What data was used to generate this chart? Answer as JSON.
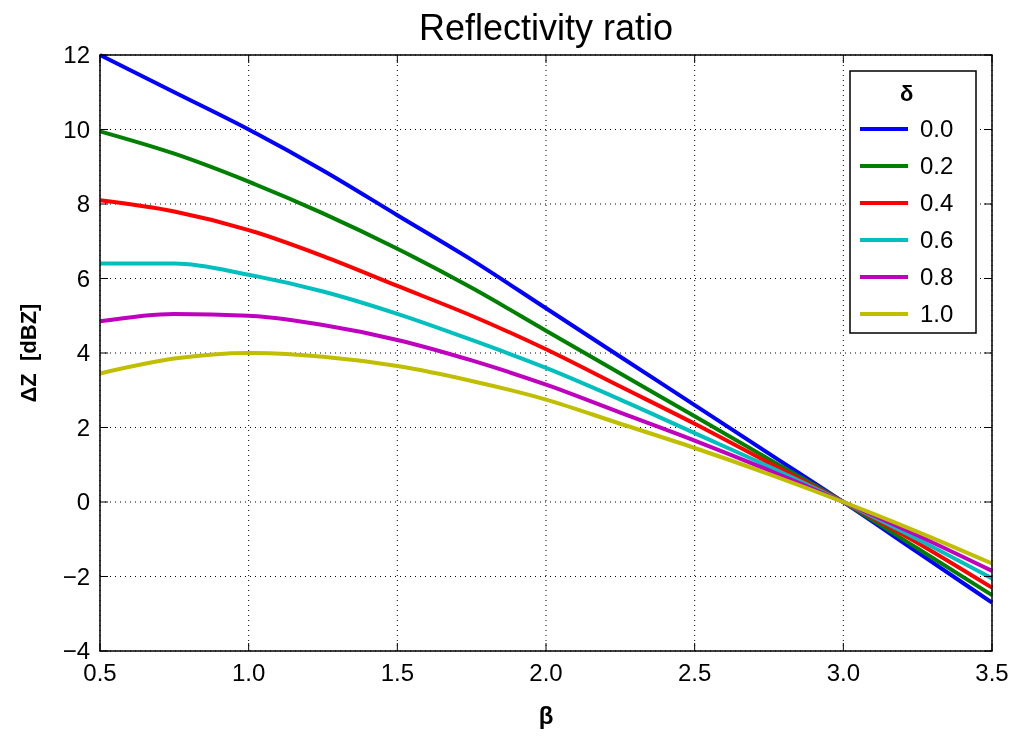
{
  "chart_data": {
    "type": "line",
    "title": "Reflectivity ratio",
    "xlabel": "β",
    "ylabel": "ΔZ  [dBZ]",
    "legend_title": "δ",
    "x": [
      0.5,
      0.75,
      1.0,
      1.25,
      1.5,
      1.75,
      2.0,
      2.25,
      2.5,
      2.75,
      3.0,
      3.25,
      3.5
    ],
    "series": [
      {
        "name": "0.0",
        "color": "#0000ff",
        "values": [
          12,
          11.0,
          10,
          8.9,
          7.7,
          6.5,
          5.2,
          3.9,
          2.6,
          1.3,
          0,
          -1.35,
          -2.7
        ]
      },
      {
        "name": "0.2",
        "color": "#008000",
        "values": [
          9.95,
          9.35,
          8.6,
          7.75,
          6.8,
          5.75,
          4.6,
          3.45,
          2.3,
          1.15,
          0,
          -1.25,
          -2.5
        ]
      },
      {
        "name": "0.4",
        "color": "#ff0000",
        "values": [
          8.1,
          7.8,
          7.3,
          6.6,
          5.8,
          5.0,
          4.1,
          3.1,
          2.1,
          1.05,
          0,
          -1.1,
          -2.3
        ]
      },
      {
        "name": "0.6",
        "color": "#00bfbf",
        "values": [
          6.4,
          6.4,
          6.1,
          5.65,
          5.05,
          4.35,
          3.6,
          2.75,
          1.85,
          0.95,
          0,
          -1.0,
          -2.05
        ]
      },
      {
        "name": "0.8",
        "color": "#bf00bf",
        "values": [
          4.85,
          5.05,
          5.0,
          4.75,
          4.35,
          3.8,
          3.15,
          2.4,
          1.65,
          0.85,
          0,
          -0.9,
          -1.85
        ]
      },
      {
        "name": "1.0",
        "color": "#bfbf00",
        "values": [
          3.45,
          3.85,
          4.0,
          3.9,
          3.65,
          3.25,
          2.75,
          2.1,
          1.45,
          0.75,
          0,
          -0.8,
          -1.65
        ]
      }
    ],
    "xlim": [
      0.5,
      3.5
    ],
    "xticks": [
      0.5,
      {
        "value": 1,
        "label": "1.0"
      },
      1.5,
      {
        "value": 2,
        "label": "2.0"
      },
      2.5,
      {
        "value": 3,
        "label": "3.0"
      },
      3.5
    ],
    "ylim": [
      -4,
      12
    ],
    "yticks": [
      {
        "value": -4,
        "label": "−4"
      },
      {
        "value": -2,
        "label": "−2"
      },
      0,
      2,
      4,
      6,
      8,
      10,
      12
    ],
    "grid": true,
    "legend": "top right",
    "line_style": "solid"
  }
}
